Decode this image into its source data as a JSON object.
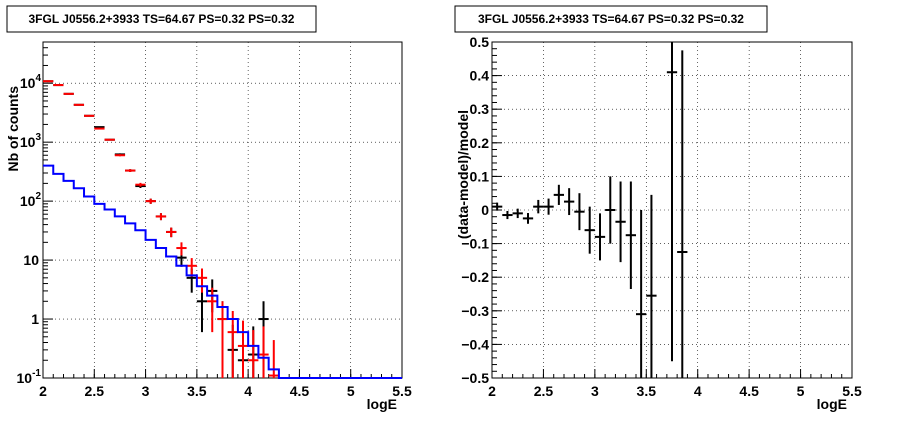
{
  "chart_data": [
    {
      "type": "line",
      "title": "3FGL J0556.2+3933 TS=64.67 PS=0.32 PS=0.32",
      "xlabel": "logE",
      "ylabel": "Nb of counts",
      "xlim": [
        2,
        5.5
      ],
      "ylim": [
        0.1,
        50000
      ],
      "yscale": "log",
      "grid": true,
      "x_ticks": [
        "2",
        "2.5",
        "3",
        "3.5",
        "4",
        "4.5",
        "5",
        "5.5"
      ],
      "y_ticks": [
        {
          "value": 0.1,
          "base": "10",
          "exp": "-1"
        },
        {
          "value": 1,
          "base": "1",
          "exp": ""
        },
        {
          "value": 10,
          "base": "10",
          "exp": ""
        },
        {
          "value": 100,
          "base": "10",
          "exp": "2"
        },
        {
          "value": 1000,
          "base": "10",
          "exp": "3"
        },
        {
          "value": 10000,
          "base": "10",
          "exp": "4"
        }
      ],
      "series": [
        {
          "color": "#000000",
          "kind": "points",
          "x": [
            2.05,
            2.15,
            2.25,
            2.35,
            2.45,
            2.55,
            2.65,
            2.75,
            2.85,
            2.95,
            3.05,
            3.15,
            3.25,
            3.35,
            3.45,
            3.55,
            3.65,
            3.75,
            3.85,
            3.95,
            4.05,
            4.15
          ],
          "y": [
            10800,
            9300,
            6600,
            4300,
            2800,
            1800,
            1100,
            620,
            330,
            180,
            100,
            55,
            30,
            11,
            5,
            2,
            3,
            1,
            0.3,
            0.2,
            0.25,
            1
          ],
          "err": [
            104,
            96,
            81,
            66,
            53,
            42,
            33,
            25,
            18,
            13,
            10,
            7.4,
            5.5,
            3.3,
            2.2,
            1.4,
            1.7,
            1,
            0.5,
            0.4,
            0.5,
            1
          ]
        },
        {
          "color": "#ff0000",
          "kind": "points",
          "x": [
            2.05,
            2.15,
            2.25,
            2.35,
            2.45,
            2.55,
            2.65,
            2.75,
            2.85,
            2.95,
            3.05,
            3.15,
            3.25,
            3.35,
            3.45,
            3.55,
            3.65,
            3.75,
            3.85,
            3.95,
            4.05,
            4.15,
            4.25
          ],
          "y": [
            10800,
            9300,
            6600,
            4300,
            2800,
            1700,
            1100,
            600,
            330,
            190,
            100,
            55,
            30,
            16,
            8,
            5,
            2,
            1,
            0.6,
            0.35,
            0.2,
            0.25,
            0.11
          ],
          "err": [
            104,
            96,
            81,
            66,
            53,
            41,
            33,
            24,
            18,
            14,
            10,
            7.4,
            5.5,
            4,
            2.8,
            2.2,
            1.4,
            1,
            0.77,
            0.59,
            0.45,
            0.5,
            0.33
          ]
        },
        {
          "color": "#0000ff",
          "kind": "step",
          "edges": [
            2.0,
            2.1,
            2.2,
            2.3,
            2.4,
            2.5,
            2.6,
            2.7,
            2.8,
            2.9,
            3.0,
            3.1,
            3.2,
            3.3,
            3.4,
            3.5,
            3.6,
            3.7,
            3.8,
            3.9,
            4.0,
            4.1,
            4.2,
            4.3,
            5.5
          ],
          "values": [
            400,
            290,
            220,
            165,
            120,
            90,
            72,
            55,
            42,
            32,
            22,
            16,
            11.5,
            8,
            5.5,
            3.6,
            2.5,
            1.6,
            1.0,
            0.6,
            0.35,
            0.22,
            0.14,
            0.1
          ]
        }
      ]
    },
    {
      "type": "scatter",
      "title": "3FGL J0556.2+3933 TS=64.67 PS=0.32 PS=0.32",
      "xlabel": "logE",
      "ylabel": "(data-model)/model",
      "xlim": [
        2,
        5.5
      ],
      "ylim": [
        -0.5,
        0.5
      ],
      "grid": true,
      "x_ticks": [
        "2",
        "2.5",
        "3",
        "3.5",
        "4",
        "4.5",
        "5",
        "5.5"
      ],
      "y_ticks": [
        "−0.5",
        "−0.4",
        "−0.3",
        "−0.2",
        "−0.1",
        "0",
        "0.1",
        "0.2",
        "0.3",
        "0.4",
        "0.5"
      ],
      "y_tick_values": [
        -0.5,
        -0.4,
        -0.3,
        -0.2,
        -0.1,
        0,
        0.1,
        0.2,
        0.3,
        0.4,
        0.5
      ],
      "series": [
        {
          "color": "#000000",
          "x": [
            2.05,
            2.15,
            2.25,
            2.35,
            2.45,
            2.55,
            2.65,
            2.75,
            2.85,
            2.95,
            3.05,
            3.15,
            3.25,
            3.35,
            3.45,
            3.55,
            3.75,
            3.85
          ],
          "y": [
            0.01,
            -0.015,
            -0.01,
            -0.025,
            0.01,
            0.01,
            0.045,
            0.025,
            -0.005,
            -0.06,
            -0.08,
            0.0,
            -0.035,
            -0.075,
            -0.31,
            -0.255,
            0.41,
            -0.125
          ],
          "err": [
            0.012,
            0.012,
            0.014,
            0.016,
            0.02,
            0.024,
            0.03,
            0.04,
            0.055,
            0.07,
            0.07,
            0.1,
            0.12,
            0.16,
            0.31,
            0.3,
            0.86,
            0.6
          ]
        }
      ]
    }
  ]
}
